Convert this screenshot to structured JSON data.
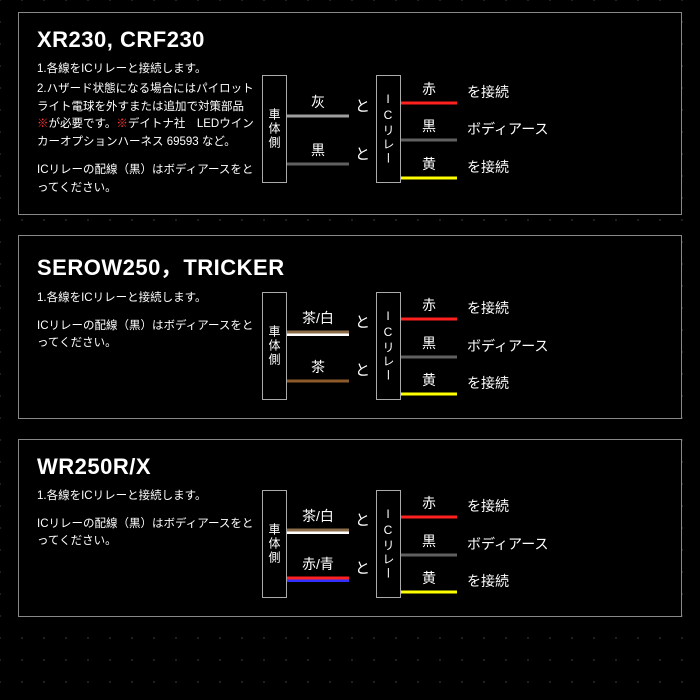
{
  "colors": {
    "border": "#888888",
    "background": "#000000",
    "text": "#ffffff",
    "dot": "#2a2a2a",
    "noteRed": "#ff3333"
  },
  "labels": {
    "vehicleSide": "車体側",
    "icRelay": "ICリレー",
    "connector": "と",
    "connectEnd": "を接続",
    "bodyEarth": "ボディアース"
  },
  "wireColors": {
    "grey": {
      "label": "灰",
      "stroke": "#9e9e9e"
    },
    "black": {
      "label": "黒",
      "stroke": "#606060"
    },
    "brownWhite": {
      "label": "茶/白",
      "strokeA": "#8d6e4a",
      "strokeB": "#ffffff"
    },
    "brown": {
      "label": "茶",
      "stroke": "#8d5a2a"
    },
    "redBlue": {
      "label": "赤/青",
      "strokeA": "#ff2020",
      "strokeB": "#3030ff"
    },
    "red": {
      "label": "赤",
      "stroke": "#ff2020"
    },
    "blackR": {
      "label": "黒",
      "stroke": "#606060"
    },
    "yellow": {
      "label": "黄",
      "stroke": "#ffff00"
    }
  },
  "panels": [
    {
      "title": "XR230, CRF230",
      "instructions": [
        "1.各線をICリレーと接続します。",
        "2.ハザード状態になる場合にはパイロットライト電球を外すまたは追加で対策部品※が必要です。※デイトナ社　LEDウインカーオプションハーネス 69593 など。"
      ],
      "note": "ICリレーの配線（黒）はボディアースをとってください。",
      "leftWires": [
        "grey",
        "black"
      ],
      "rightWires": [
        "red",
        "blackR",
        "yellow"
      ]
    },
    {
      "title": "SEROW250，TRICKER",
      "instructions": [
        "1.各線をICリレーと接続します。"
      ],
      "note": "ICリレーの配線（黒）はボディアースをとってください。",
      "leftWires": [
        "brownWhite",
        "brown"
      ],
      "rightWires": [
        "red",
        "blackR",
        "yellow"
      ]
    },
    {
      "title": "WR250R/X",
      "instructions": [
        "1.各線をICリレーと接続します。"
      ],
      "note": "ICリレーの配線（黒）はボディアースをとってください。",
      "leftWires": [
        "brownWhite",
        "redBlue"
      ],
      "rightWires": [
        "red",
        "blackR",
        "yellow"
      ]
    }
  ]
}
